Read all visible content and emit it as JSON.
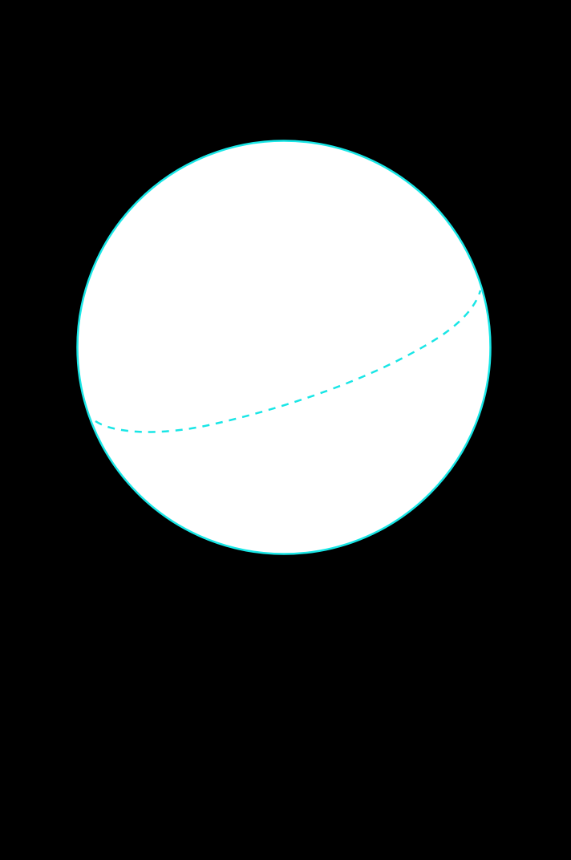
{
  "diagram": {
    "subject": "sphere",
    "colors": {
      "background": "#000000",
      "sphere_fill": "#ffffff",
      "outline": "#19e6e6",
      "equator": "#19e6e6"
    },
    "outline_style": "solid",
    "equator_style": "dashed"
  }
}
